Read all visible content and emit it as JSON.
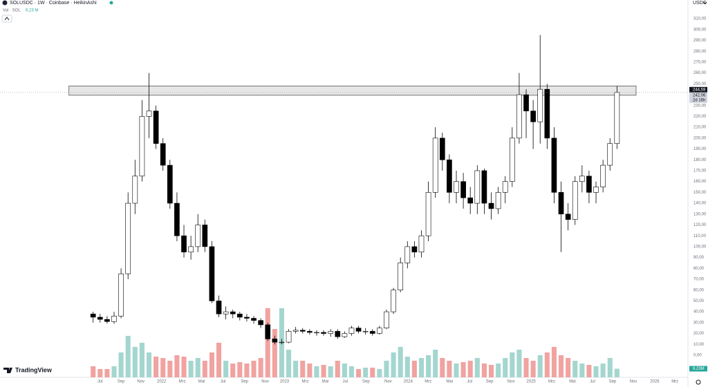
{
  "header": {
    "symbol": "SOLUSDC · 1W · Coinbase · HeikinAshi",
    "volume_legend": "Vol · SOL",
    "volume_value": "6,23 M",
    "currency": "USDC",
    "logo": "TradingView"
  },
  "chart_data": {
    "type": "candlestick",
    "x": [
      0,
      3,
      6,
      9,
      12,
      15,
      18,
      21,
      24,
      27,
      30,
      33,
      36,
      39,
      42,
      45,
      48,
      51,
      54,
      57,
      60,
      63,
      66,
      69,
      72,
      75,
      78,
      81,
      84,
      87,
      90,
      93,
      96,
      99,
      102,
      105,
      108,
      111,
      114,
      117,
      120,
      123,
      126,
      129,
      132,
      135,
      138,
      141,
      144,
      147,
      150,
      153,
      156,
      159,
      162,
      165,
      168,
      171,
      174,
      177,
      180,
      183,
      186,
      189,
      192,
      195,
      198,
      201,
      204,
      207,
      210,
      213,
      216,
      219,
      222,
      225
    ],
    "open": [
      38,
      35,
      33,
      31,
      36,
      75,
      140,
      165,
      220,
      225,
      195,
      175,
      140,
      110,
      95,
      100,
      120,
      100,
      50,
      38,
      40,
      38,
      35,
      34,
      32,
      28,
      15,
      12,
      12,
      22,
      23,
      22,
      21,
      21,
      20,
      22,
      17,
      20,
      25,
      22,
      22,
      20,
      25,
      40,
      60,
      85,
      100,
      95,
      110,
      150,
      200,
      180,
      150,
      160,
      145,
      140,
      170,
      140,
      135,
      150,
      160,
      200,
      240,
      225,
      215,
      245,
      200,
      150,
      130,
      125,
      160,
      165,
      150,
      155,
      175,
      195
    ],
    "high": [
      40,
      38,
      36,
      40,
      80,
      150,
      180,
      235,
      260,
      230,
      200,
      180,
      150,
      120,
      110,
      130,
      125,
      105,
      55,
      45,
      42,
      40,
      38,
      36,
      34,
      30,
      18,
      15,
      24,
      26,
      25,
      24,
      23,
      23,
      24,
      24,
      22,
      27,
      27,
      25,
      24,
      27,
      42,
      62,
      90,
      105,
      105,
      115,
      160,
      210,
      205,
      185,
      170,
      168,
      155,
      175,
      172,
      150,
      155,
      165,
      210,
      260,
      245,
      235,
      295,
      250,
      210,
      160,
      140,
      165,
      175,
      170,
      160,
      180,
      200,
      248
    ],
    "low": [
      30,
      30,
      29,
      29,
      34,
      70,
      130,
      160,
      200,
      190,
      170,
      135,
      105,
      90,
      88,
      95,
      95,
      48,
      35,
      33,
      34,
      32,
      31,
      29,
      25,
      13,
      10,
      10,
      11,
      20,
      20,
      19,
      18,
      18,
      17,
      15,
      16,
      18,
      20,
      19,
      18,
      19,
      24,
      38,
      58,
      80,
      90,
      90,
      105,
      145,
      170,
      140,
      140,
      135,
      130,
      130,
      130,
      125,
      130,
      140,
      155,
      195,
      200,
      190,
      195,
      190,
      140,
      95,
      115,
      120,
      150,
      140,
      140,
      150,
      170,
      190
    ],
    "close": [
      35,
      33,
      31,
      36,
      75,
      140,
      165,
      220,
      225,
      195,
      175,
      140,
      110,
      95,
      100,
      120,
      100,
      50,
      38,
      40,
      38,
      35,
      34,
      32,
      28,
      15,
      12,
      12,
      22,
      23,
      22,
      21,
      21,
      20,
      22,
      17,
      20,
      25,
      22,
      22,
      20,
      25,
      40,
      60,
      85,
      100,
      95,
      110,
      150,
      200,
      180,
      150,
      160,
      145,
      140,
      170,
      140,
      135,
      150,
      160,
      200,
      240,
      225,
      215,
      245,
      200,
      150,
      130,
      125,
      160,
      165,
      150,
      155,
      175,
      195,
      242.06
    ],
    "volume": [
      8,
      6,
      6,
      8,
      18,
      30,
      22,
      25,
      18,
      15,
      14,
      12,
      16,
      15,
      12,
      14,
      12,
      18,
      25,
      12,
      10,
      11,
      10,
      12,
      14,
      50,
      35,
      50,
      20,
      12,
      12,
      10,
      8,
      9,
      8,
      12,
      10,
      8,
      6,
      7,
      7,
      6,
      12,
      18,
      22,
      15,
      12,
      14,
      16,
      20,
      14,
      12,
      10,
      11,
      12,
      14,
      10,
      9,
      10,
      14,
      18,
      20,
      14,
      12,
      16,
      18,
      22,
      16,
      14,
      12,
      10,
      9,
      8,
      10,
      14,
      6.23
    ],
    "up_color": "#ffffff",
    "down_color": "#000000",
    "vol_up_color": "#a3d6cf",
    "vol_down_color": "#f0a3a0",
    "xlim": [
      -40,
      254
    ],
    "ylim": [
      -20.4,
      314.5
    ],
    "vlim": [
      0,
      60
    ],
    "xticks": [
      {
        "value": 3,
        "label": "Jul"
      },
      {
        "value": 12,
        "label": "Sep"
      },
      {
        "value": 20.5,
        "label": "Nov"
      },
      {
        "value": 29.4,
        "label": "2022"
      },
      {
        "value": 38.3,
        "label": "Mrz"
      },
      {
        "value": 46.6,
        "label": "Mai"
      },
      {
        "value": 55.8,
        "label": "Jul"
      },
      {
        "value": 65,
        "label": "Sep"
      },
      {
        "value": 73.9,
        "label": "Nov"
      },
      {
        "value": 82.2,
        "label": "2023"
      },
      {
        "value": 91.1,
        "label": "Mrz"
      },
      {
        "value": 99.7,
        "label": "Mai"
      },
      {
        "value": 108.3,
        "label": "Jul"
      },
      {
        "value": 117.2,
        "label": "Sep"
      },
      {
        "value": 126.7,
        "label": "Nov"
      },
      {
        "value": 135.3,
        "label": "2024"
      },
      {
        "value": 143.9,
        "label": "Mrz"
      },
      {
        "value": 153.1,
        "label": "Mai"
      },
      {
        "value": 161.7,
        "label": "Jul"
      },
      {
        "value": 170.3,
        "label": "Sep"
      },
      {
        "value": 179.5,
        "label": "Nov"
      },
      {
        "value": 188.1,
        "label": "2025"
      },
      {
        "value": 197,
        "label": "Mrz"
      },
      {
        "value": 205.9,
        "label": "Mai"
      },
      {
        "value": 214.5,
        "label": "Jul"
      },
      {
        "value": 223.1,
        "label": "Sep"
      },
      {
        "value": 232,
        "label": "Nov"
      },
      {
        "value": 241.2,
        "label": "2026"
      },
      {
        "value": 249.9,
        "label": "Mrz"
      }
    ],
    "yticks": [
      {
        "value": 0,
        "label": "0,00"
      },
      {
        "value": 10,
        "label": "10,00"
      },
      {
        "value": 20,
        "label": "20,00"
      },
      {
        "value": 30,
        "label": "30,00"
      },
      {
        "value": 40,
        "label": "40,00"
      },
      {
        "value": 50,
        "label": "50,00"
      },
      {
        "value": 60,
        "label": "60,00"
      },
      {
        "value": 70,
        "label": "70,00"
      },
      {
        "value": 80,
        "label": "80,00"
      },
      {
        "value": 90,
        "label": "90,00"
      },
      {
        "value": 100,
        "label": "100,00"
      },
      {
        "value": 110,
        "label": "110,00"
      },
      {
        "value": 120,
        "label": "120,00"
      },
      {
        "value": 130,
        "label": "130,00"
      },
      {
        "value": 140,
        "label": "140,00"
      },
      {
        "value": 150,
        "label": "150,00"
      },
      {
        "value": 160,
        "label": "160,00"
      },
      {
        "value": 170,
        "label": "170,00"
      },
      {
        "value": 180,
        "label": "180,00"
      },
      {
        "value": 190,
        "label": "190,00"
      },
      {
        "value": 200,
        "label": "200,00"
      },
      {
        "value": 210,
        "label": "210,00"
      },
      {
        "value": 220,
        "label": "220,00"
      },
      {
        "value": 230,
        "label": "230,00"
      },
      {
        "value": 240,
        "label": "240,00"
      },
      {
        "value": 250,
        "label": "250,00"
      },
      {
        "value": 260,
        "label": "260,00"
      },
      {
        "value": 270,
        "label": "270,00"
      },
      {
        "value": 280,
        "label": "280,00"
      },
      {
        "value": 290,
        "label": "290,00"
      },
      {
        "value": 300,
        "label": "300,00"
      },
      {
        "value": 310,
        "label": "310,00"
      }
    ],
    "zone": {
      "x": [
        -10.4,
        233.2
      ],
      "y": [
        239.5,
        248
      ]
    },
    "marker_price": {
      "value": 244.59,
      "label": "244,59"
    },
    "last_price": {
      "value": 242.06,
      "label": "242,06"
    },
    "countdown": "2d 16h",
    "volume_label": {
      "value": 6.23,
      "label": "6,23M"
    }
  }
}
